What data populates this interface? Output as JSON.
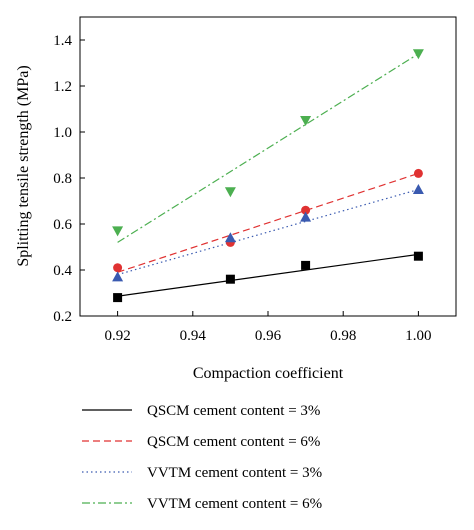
{
  "chart_data": {
    "type": "scatter",
    "xlabel": "Compaction coefficient",
    "ylabel": "Splitting tensile strength (MPa)",
    "xlim": [
      0.91,
      1.01
    ],
    "ylim": [
      0.2,
      1.5
    ],
    "x_ticks": [
      0.92,
      0.94,
      0.96,
      0.98,
      1.0
    ],
    "x_tick_labels": [
      "0.92",
      "0.94",
      "0.96",
      "0.98",
      "1.00"
    ],
    "y_ticks": [
      0.2,
      0.4,
      0.6,
      0.8,
      1.0,
      1.2,
      1.4
    ],
    "y_tick_labels": [
      "0.2",
      "0.4",
      "0.6",
      "0.8",
      "1.0",
      "1.2",
      "1.4"
    ],
    "legend_position": "below",
    "series": [
      {
        "name": "QSCM cement content = 3%",
        "color": "#000000",
        "marker": "square",
        "dash": "solid",
        "x": [
          0.92,
          0.95,
          0.97,
          1.0
        ],
        "y": [
          0.28,
          0.36,
          0.42,
          0.46
        ],
        "fit": [
          [
            0.92,
            0.286
          ],
          [
            1.0,
            0.468
          ]
        ]
      },
      {
        "name": "QSCM cement content = 6%",
        "color": "#e03232",
        "marker": "circle",
        "dash": "dashed",
        "x": [
          0.92,
          0.95,
          0.97,
          1.0
        ],
        "y": [
          0.41,
          0.52,
          0.66,
          0.82
        ],
        "fit": [
          [
            0.92,
            0.39
          ],
          [
            1.0,
            0.82
          ]
        ]
      },
      {
        "name": "VVTM cement content = 3%",
        "color": "#3a5ab0",
        "marker": "triangle-up",
        "dash": "dotted",
        "x": [
          0.92,
          0.95,
          0.97,
          1.0
        ],
        "y": [
          0.37,
          0.54,
          0.63,
          0.75
        ],
        "fit": [
          [
            0.92,
            0.38
          ],
          [
            1.0,
            0.75
          ]
        ]
      },
      {
        "name": "VVTM cement content = 6%",
        "color": "#4caf50",
        "marker": "triangle-down",
        "dash": "dashdot",
        "x": [
          0.92,
          0.95,
          0.97,
          1.0
        ],
        "y": [
          0.57,
          0.74,
          1.05,
          1.34
        ],
        "fit": [
          [
            0.92,
            0.52
          ],
          [
            1.0,
            1.34
          ]
        ]
      }
    ]
  }
}
